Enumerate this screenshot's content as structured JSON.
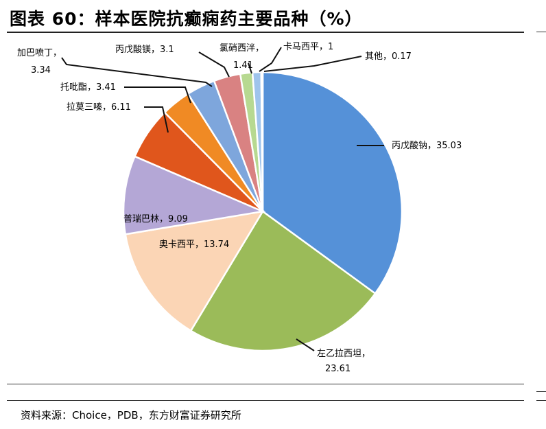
{
  "header": {
    "title": "图表 60：样本医院抗癫痫药主要品种（%）"
  },
  "footer": {
    "source": "资料来源：Choice，PDB，东方财富证券研究所"
  },
  "chart_data": {
    "type": "pie",
    "title": "样本医院抗癫痫药主要品种（%）",
    "slices": [
      {
        "name": "丙戊酸钠",
        "value": 35.03,
        "color": "#5591d8"
      },
      {
        "name": "左乙拉西坦",
        "value": 23.61,
        "color": "#9bbb59"
      },
      {
        "name": "奥卡西平",
        "value": 13.74,
        "color": "#fbd5b5"
      },
      {
        "name": "普瑞巴林",
        "value": 9.09,
        "color": "#b4a7d6"
      },
      {
        "name": "拉莫三嗪",
        "value": 6.11,
        "color": "#e0561c"
      },
      {
        "name": "托吡酯",
        "value": 3.41,
        "color": "#f08a24"
      },
      {
        "name": "加巴喷丁",
        "value": 3.34,
        "color": "#7ea6dc"
      },
      {
        "name": "丙戊酸镁",
        "value": 3.1,
        "color": "#d98282"
      },
      {
        "name": "氯硝西泮",
        "value": 1.41,
        "color": "#b7d991"
      },
      {
        "name": "卡马西平",
        "value": 1,
        "color": "#9fc4ec"
      },
      {
        "name": "其他",
        "value": 0.17,
        "color": "#c9a6e0"
      }
    ]
  }
}
